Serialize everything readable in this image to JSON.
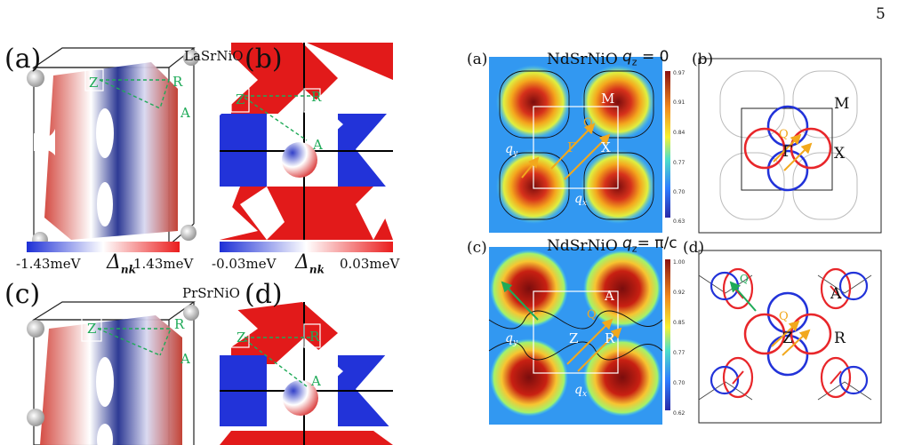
{
  "page_number": "5",
  "left": {
    "panel_a": {
      "label": "(a)",
      "material": "LaSrNiO"
    },
    "panel_b": {
      "label": "(b)"
    },
    "panel_c": {
      "label": "(c)",
      "material": "PrSrNiO"
    },
    "panel_d": {
      "label": "(d)"
    },
    "points": {
      "Z": "Z",
      "R": "R",
      "A": "A"
    },
    "colorbar_ab": {
      "min": "-1.43meV",
      "symbol": "Δ",
      "sub": "nk",
      "max": "1.43meV"
    },
    "colorbar_cd": {
      "min": "-0.03meV",
      "symbol": "Δ",
      "sub": "nk",
      "max": "0.03meV"
    }
  },
  "right": {
    "panel_a": {
      "label": "(a)",
      "material": "NdSrNiO",
      "qz": "q",
      "qz_sub": "z",
      "qz_val": "= 0",
      "ticks": [
        "0.97",
        "0.91",
        "0.84",
        "0.77",
        "0.70",
        "0.63"
      ],
      "points": {
        "M": "M",
        "X": "X",
        "Gamma": "Γ",
        "Q": "Q"
      },
      "qx": "q",
      "qy": "q"
    },
    "panel_b": {
      "label": "(b)",
      "points": {
        "M": "M",
        "X": "X",
        "Gamma": "Γ",
        "Q": "Q"
      }
    },
    "panel_c": {
      "label": "(c)",
      "material": "NdSrNiO",
      "qz": "q",
      "qz_sub": "z",
      "qz_val": "= π/c",
      "ticks": [
        "1.00",
        "0.92",
        "0.85",
        "0.77",
        "0.70",
        "0.62"
      ],
      "points": {
        "A": "A",
        "R": "R",
        "Z": "Z",
        "Q": "Q"
      }
    },
    "panel_d": {
      "label": "(d)",
      "points": {
        "A": "A",
        "R": "R",
        "Z": "Z",
        "Q": "Q",
        "Q2": "Q"
      }
    }
  },
  "colors": {
    "red": "#e8262a",
    "blue": "#2233d9",
    "green": "#1faa58",
    "orange": "#f2a81d"
  }
}
